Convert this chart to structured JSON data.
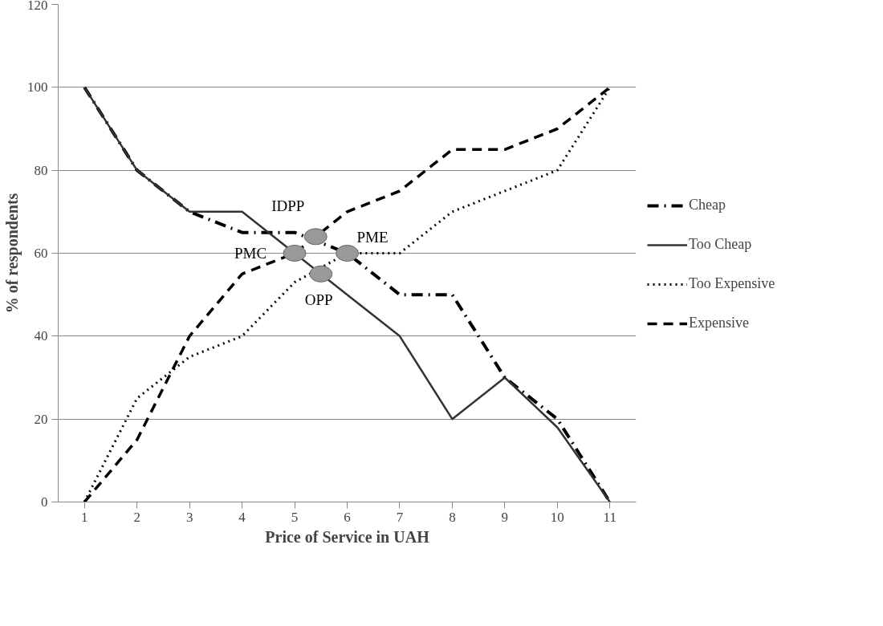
{
  "chart_data": {
    "type": "line",
    "xlabel": "Price of Service in UAH",
    "ylabel": "% of respondents",
    "x": [
      1,
      2,
      3,
      4,
      5,
      6,
      7,
      8,
      9,
      10,
      11
    ],
    "xlim": [
      0.5,
      11.5
    ],
    "xticks": [
      1,
      2,
      3,
      4,
      5,
      6,
      7,
      8,
      9,
      10,
      11
    ],
    "ylim": [
      0,
      120
    ],
    "yticks": [
      0,
      20,
      40,
      60,
      80,
      100,
      120
    ],
    "grid": "y",
    "legend": "right",
    "marker": "none",
    "series": [
      {
        "name": "Cheap",
        "color": "#000000",
        "line_style": "dashdot",
        "values": [
          100,
          80,
          70,
          65,
          65,
          60,
          50,
          50,
          30,
          20,
          0
        ]
      },
      {
        "name": "Too Cheap",
        "color": "#333333",
        "line_style": "solid",
        "values": [
          100,
          80,
          70,
          70,
          60,
          50,
          40,
          20,
          30,
          18,
          0
        ]
      },
      {
        "name": "Too Expensive",
        "color": "#000000",
        "line_style": "dotted",
        "values": [
          0,
          25,
          35,
          40,
          53,
          60,
          60,
          70,
          75,
          80,
          100
        ]
      },
      {
        "name": "Expensive",
        "color": "#000000",
        "line_style": "dashed",
        "values": [
          0,
          15,
          40,
          55,
          60,
          70,
          75,
          85,
          85,
          90,
          100
        ]
      }
    ],
    "annotations": [
      {
        "text": "IDPP",
        "x": 5.4,
        "y": 64
      },
      {
        "text": "PMC",
        "x": 5,
        "y": 60
      },
      {
        "text": "PME",
        "x": 6,
        "y": 60
      },
      {
        "text": "OPP",
        "x": 5.5,
        "y": 55
      }
    ]
  }
}
